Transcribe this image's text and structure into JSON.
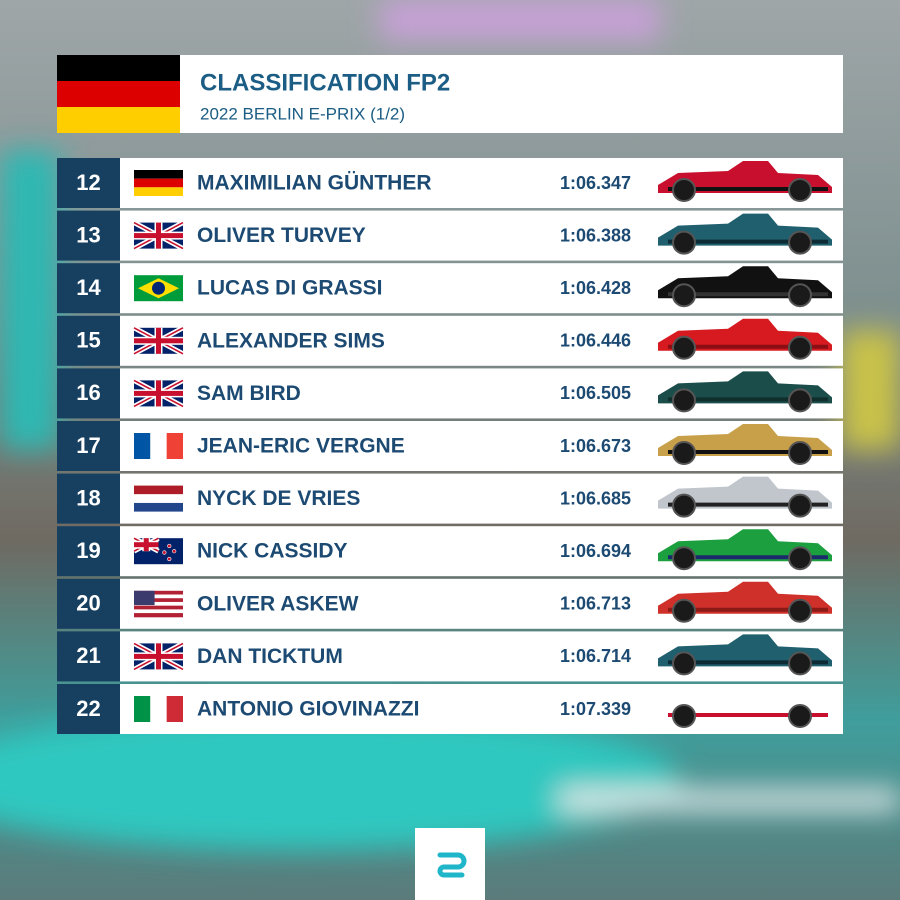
{
  "header": {
    "title": "CLASSIFICATION FP2",
    "subtitle": "2022 BERLIN E-PRIX (1/2)"
  },
  "table": {
    "rows": [
      [
        "12",
        "MAXIMILIAN GÜNTHER",
        "1:06.347"
      ],
      [
        "13",
        "OLIVER TURVEY",
        "1:06.388"
      ],
      [
        "14",
        "LUCAS DI GRASSI",
        "1:06.428"
      ],
      [
        "15",
        "ALEXANDER SIMS",
        "1:06.446"
      ],
      [
        "16",
        "SAM BIRD",
        "1:06.505"
      ],
      [
        "17",
        "JEAN-ERIC VERGNE",
        "1:06.673"
      ],
      [
        "18",
        "NYCK DE VRIES",
        "1:06.685"
      ],
      [
        "19",
        "NICK CASSIDY",
        "1:06.694"
      ],
      [
        "20",
        "OLIVER ASKEW",
        "1:06.713"
      ],
      [
        "21",
        "DAN TICKTUM",
        "1:06.714"
      ],
      [
        "22",
        "ANTONIO GIOVINAZZI",
        "1:07.339"
      ]
    ]
  }
}
